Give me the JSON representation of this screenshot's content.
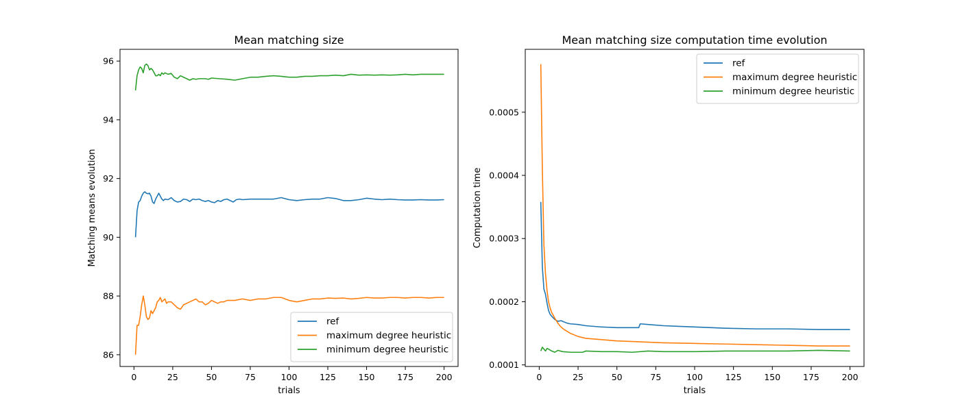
{
  "chart_data": [
    {
      "type": "line",
      "title": "Mean matching size",
      "xlabel": "trials",
      "ylabel": "Matching means evolution",
      "xlim": [
        -9,
        209
      ],
      "ylim": [
        85.6,
        96.4
      ],
      "xticks": [
        0,
        25,
        50,
        75,
        100,
        125,
        150,
        175,
        200
      ],
      "yticks": [
        86,
        88,
        90,
        92,
        94,
        96
      ],
      "legend": "lower-right",
      "series": [
        {
          "name": "ref",
          "color": "#1f77b4",
          "x": [
            1,
            2,
            3,
            4,
            5,
            6,
            7,
            8,
            9,
            10,
            11,
            12,
            13,
            14,
            15,
            16,
            17,
            18,
            19,
            20,
            22,
            24,
            26,
            28,
            30,
            32,
            34,
            36,
            38,
            40,
            42,
            44,
            46,
            48,
            50,
            52,
            54,
            56,
            58,
            60,
            62,
            64,
            66,
            68,
            70,
            75,
            80,
            85,
            90,
            95,
            100,
            105,
            110,
            115,
            120,
            125,
            130,
            135,
            140,
            145,
            150,
            155,
            160,
            165,
            170,
            175,
            180,
            185,
            190,
            195,
            200
          ],
          "y": [
            90.0,
            90.9,
            91.2,
            91.25,
            91.4,
            91.5,
            91.55,
            91.5,
            91.48,
            91.5,
            91.4,
            91.2,
            91.15,
            91.3,
            91.4,
            91.5,
            91.4,
            91.3,
            91.25,
            91.3,
            91.28,
            91.35,
            91.25,
            91.2,
            91.22,
            91.3,
            91.28,
            91.22,
            91.3,
            91.28,
            91.3,
            91.25,
            91.22,
            91.25,
            91.2,
            91.18,
            91.25,
            91.22,
            91.28,
            91.3,
            91.25,
            91.2,
            91.28,
            91.3,
            91.28,
            91.3,
            91.3,
            91.3,
            91.3,
            91.35,
            91.28,
            91.25,
            91.28,
            91.3,
            91.3,
            91.35,
            91.32,
            91.25,
            91.25,
            91.28,
            91.33,
            91.3,
            91.28,
            91.3,
            91.28,
            91.27,
            91.27,
            91.28,
            91.27,
            91.27,
            91.28
          ]
        },
        {
          "name": "maximum degree heuristic",
          "color": "#ff7f0e",
          "x": [
            1,
            2,
            3,
            4,
            5,
            6,
            7,
            8,
            9,
            10,
            11,
            12,
            13,
            14,
            15,
            16,
            17,
            18,
            19,
            20,
            21,
            22,
            24,
            26,
            28,
            30,
            32,
            34,
            36,
            38,
            40,
            42,
            44,
            46,
            48,
            50,
            52,
            54,
            56,
            58,
            60,
            65,
            70,
            75,
            80,
            85,
            90,
            95,
            100,
            105,
            110,
            115,
            120,
            125,
            130,
            135,
            140,
            145,
            150,
            155,
            160,
            165,
            170,
            175,
            180,
            185,
            190,
            195,
            200
          ],
          "y": [
            86.0,
            87.0,
            87.0,
            87.3,
            87.7,
            88.0,
            87.7,
            87.3,
            87.2,
            87.25,
            87.5,
            87.4,
            87.5,
            87.6,
            87.8,
            87.85,
            87.95,
            87.8,
            87.85,
            87.9,
            87.75,
            87.8,
            87.8,
            87.7,
            87.6,
            87.55,
            87.7,
            87.75,
            87.8,
            87.85,
            87.9,
            87.8,
            87.8,
            87.7,
            87.75,
            87.85,
            87.8,
            87.75,
            87.8,
            87.8,
            87.85,
            87.85,
            87.9,
            87.85,
            87.9,
            87.9,
            87.95,
            87.95,
            87.85,
            87.8,
            87.85,
            87.9,
            87.9,
            87.93,
            87.92,
            87.93,
            87.9,
            87.92,
            87.95,
            87.93,
            87.93,
            87.95,
            87.95,
            87.93,
            87.95,
            87.95,
            87.93,
            87.95,
            87.95
          ]
        },
        {
          "name": "minimum degree heuristic",
          "color": "#2ca02c",
          "x": [
            1,
            2,
            3,
            4,
            5,
            6,
            7,
            8,
            9,
            10,
            11,
            12,
            13,
            14,
            15,
            16,
            17,
            18,
            19,
            20,
            22,
            24,
            26,
            28,
            30,
            32,
            34,
            36,
            38,
            40,
            42,
            44,
            46,
            48,
            50,
            55,
            60,
            65,
            70,
            75,
            80,
            85,
            90,
            95,
            100,
            105,
            110,
            115,
            120,
            125,
            130,
            135,
            140,
            145,
            150,
            155,
            160,
            165,
            170,
            175,
            180,
            185,
            190,
            195,
            200
          ],
          "y": [
            95.0,
            95.5,
            95.7,
            95.8,
            95.75,
            95.6,
            95.85,
            95.9,
            95.85,
            95.7,
            95.75,
            95.7,
            95.6,
            95.5,
            95.5,
            95.55,
            95.5,
            95.6,
            95.55,
            95.6,
            95.55,
            95.58,
            95.45,
            95.4,
            95.5,
            95.45,
            95.4,
            95.35,
            95.4,
            95.38,
            95.4,
            95.4,
            95.4,
            95.38,
            95.42,
            95.4,
            95.38,
            95.35,
            95.4,
            95.45,
            95.45,
            95.48,
            95.5,
            95.48,
            95.45,
            95.45,
            95.48,
            95.48,
            95.5,
            95.5,
            95.52,
            95.5,
            95.55,
            95.52,
            95.53,
            95.52,
            95.53,
            95.52,
            95.53,
            95.55,
            95.53,
            95.55,
            95.55,
            95.55,
            95.55
          ]
        }
      ]
    },
    {
      "type": "line",
      "title": "Mean matching size computation time evolution",
      "xlabel": "trials",
      "ylabel": "Computation time",
      "xlim": [
        -9,
        209
      ],
      "ylim": [
        9.75e-05,
        0.0005995
      ],
      "xticks": [
        0,
        25,
        50,
        75,
        100,
        125,
        150,
        175,
        200
      ],
      "yticks": [
        0.0001,
        0.0002,
        0.0003,
        0.0004,
        0.0005
      ],
      "ytick_labels": [
        "0.0001",
        "0.0002",
        "0.0003",
        "0.0004",
        "0.0005"
      ],
      "legend": "upper-right",
      "series": [
        {
          "name": "ref",
          "color": "#1f77b4",
          "x": [
            1,
            2,
            3,
            4,
            5,
            6,
            7,
            8,
            10,
            12,
            14,
            16,
            18,
            20,
            25,
            30,
            40,
            50,
            60,
            64,
            65,
            70,
            80,
            90,
            100,
            120,
            140,
            160,
            180,
            200
          ],
          "y": [
            0.000358,
            0.000255,
            0.00022,
            0.000212,
            0.000198,
            0.000186,
            0.00018,
            0.000177,
            0.000172,
            0.000169,
            0.00017,
            0.000168,
            0.000166,
            0.000165,
            0.000164,
            0.000162,
            0.00016,
            0.000159,
            0.000159,
            0.000159,
            0.000165,
            0.000164,
            0.000162,
            0.000161,
            0.00016,
            0.000158,
            0.000157,
            0.000157,
            0.000156,
            0.000156
          ]
        },
        {
          "name": "maximum degree heuristic",
          "color": "#ff7f0e",
          "x": [
            1,
            2,
            3,
            4,
            5,
            6,
            7,
            8,
            10,
            12,
            14,
            16,
            18,
            20,
            25,
            30,
            40,
            50,
            60,
            80,
            100,
            120,
            140,
            160,
            180,
            200
          ],
          "y": [
            0.000576,
            0.00041,
            0.00029,
            0.000245,
            0.000218,
            0.0002,
            0.00019,
            0.000183,
            0.000174,
            0.000166,
            0.00016,
            0.000156,
            0.000153,
            0.00015,
            0.000145,
            0.000142,
            0.00014,
            0.000138,
            0.000137,
            0.000135,
            0.000134,
            0.000133,
            0.000132,
            0.000131,
            0.00013,
            0.00013
          ]
        },
        {
          "name": "minimum degree heuristic",
          "color": "#2ca02c",
          "x": [
            1,
            2,
            3,
            4,
            5,
            6,
            8,
            10,
            12,
            15,
            20,
            25,
            28,
            30,
            40,
            50,
            60,
            70,
            80,
            100,
            120,
            140,
            160,
            180,
            200
          ],
          "y": [
            0.000122,
            0.000128,
            0.000125,
            0.000122,
            0.000126,
            0.000125,
            0.000122,
            0.00012,
            0.000123,
            0.000121,
            0.00012,
            0.00012,
            0.00012,
            0.000122,
            0.000121,
            0.000121,
            0.00012,
            0.000122,
            0.000121,
            0.000121,
            0.000122,
            0.000122,
            0.000122,
            0.000123,
            0.000122
          ]
        }
      ]
    }
  ]
}
